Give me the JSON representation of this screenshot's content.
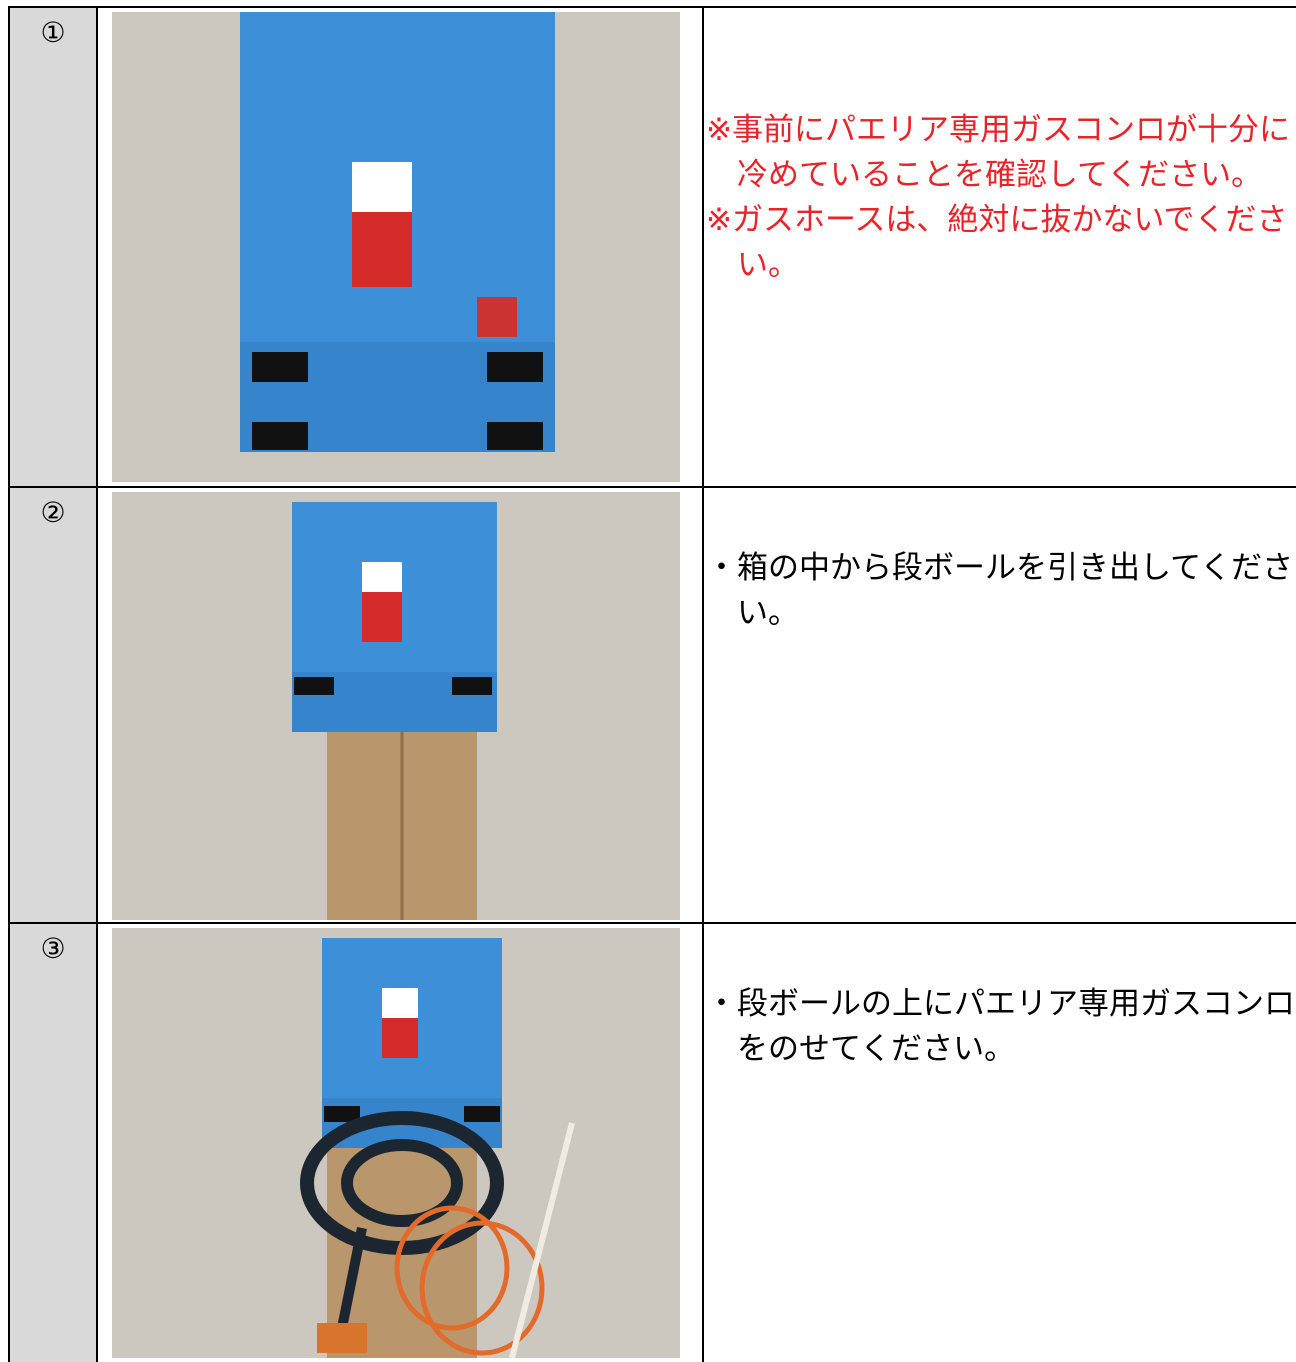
{
  "steps": [
    {
      "number": "①",
      "notes": [
        "※事前にパエリア専用ガスコンロが十分に冷めていることを確認してください。",
        "※ガスホースは、絶対に抜かないでください。"
      ]
    },
    {
      "number": "②",
      "notes": [
        "・箱の中から段ボールを引き出してください。"
      ]
    },
    {
      "number": "③",
      "notes": [
        "・段ボールの上にパエリア専用ガスコンロをのせてください。"
      ]
    }
  ]
}
